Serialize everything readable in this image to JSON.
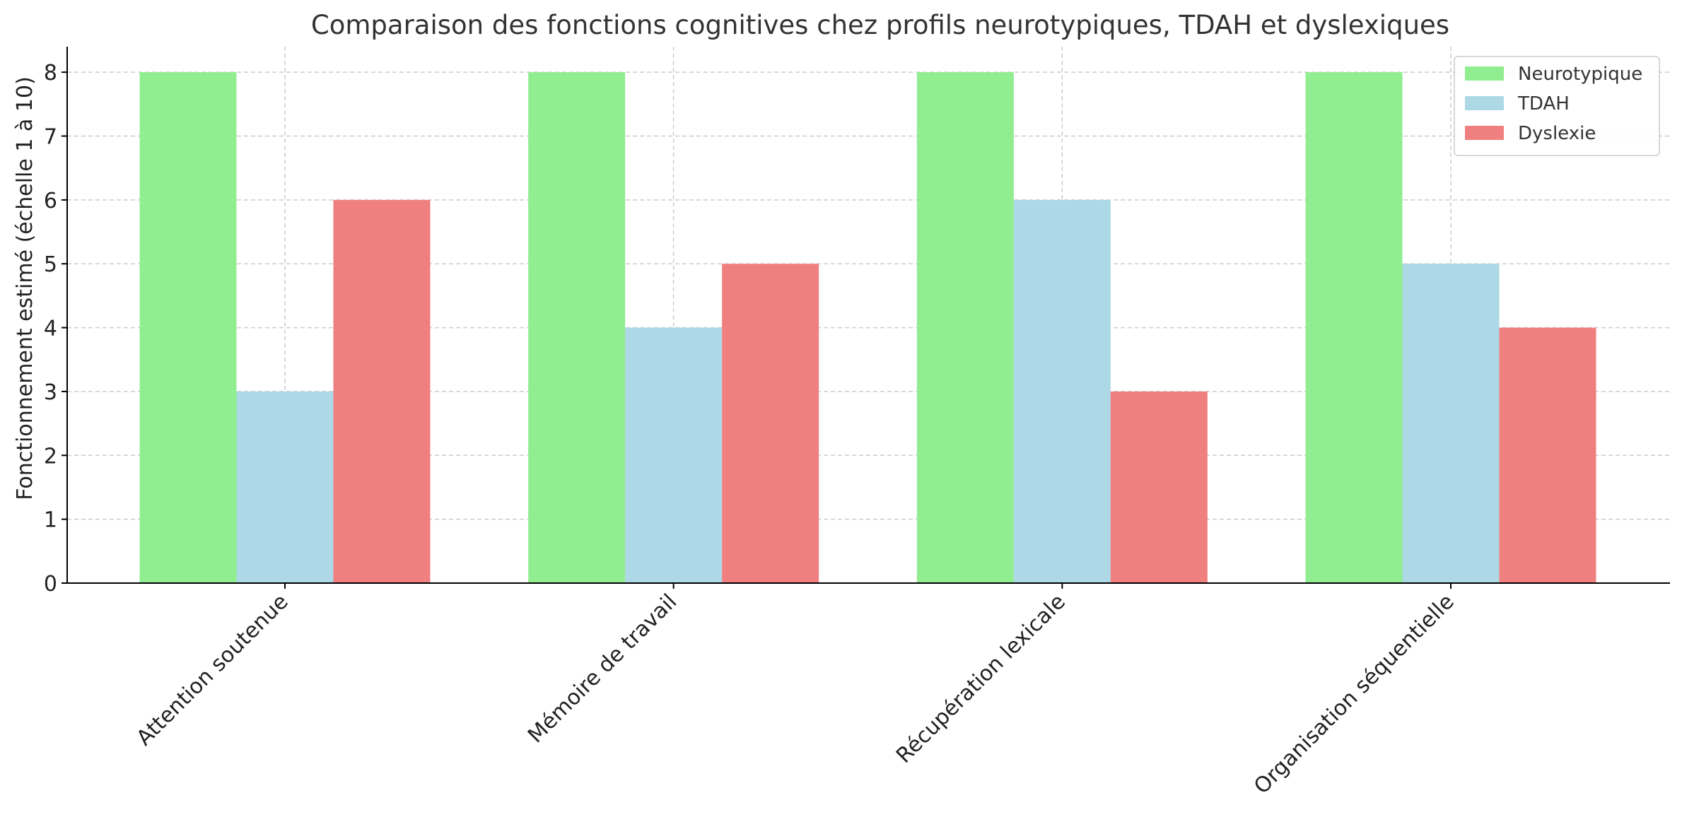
{
  "chart_data": {
    "type": "bar",
    "title": "Comparaison des fonctions cognitives chez profils neurotypiques, TDAH et dyslexiques",
    "xlabel": "",
    "ylabel": "Fonctionnement estimé (échelle 1 à 10)",
    "categories": [
      "Attention soutenue",
      "Mémoire de travail",
      "Récupération lexicale",
      "Organisation séquentielle"
    ],
    "series": [
      {
        "name": "Neurotypique",
        "color": "#90ee90",
        "values": [
          8,
          8,
          8,
          8
        ]
      },
      {
        "name": "TDAH",
        "color": "#add8e6",
        "values": [
          3,
          4,
          6,
          5
        ]
      },
      {
        "name": "Dyslexie",
        "color": "#f08080",
        "values": [
          6,
          5,
          3,
          4
        ]
      }
    ],
    "ylim": [
      0,
      8.4
    ],
    "yticks": [
      0,
      1,
      2,
      3,
      4,
      5,
      6,
      7,
      8
    ],
    "grid": true,
    "legend_position": "top-right"
  }
}
